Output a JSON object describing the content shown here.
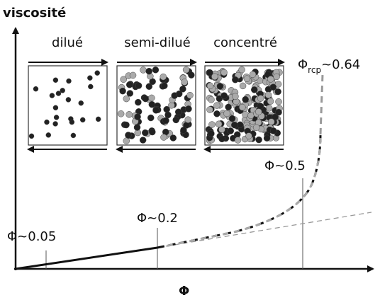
{
  "axes": {
    "y_label": "viscosité",
    "x_label": "Φ"
  },
  "regimes": [
    {
      "label": "dilué"
    },
    {
      "label": "semi-dilué"
    },
    {
      "label": "concentré"
    }
  ],
  "markers": [
    {
      "label": "Φ~0.05"
    },
    {
      "label": "Φ~0.2"
    },
    {
      "label": "Φ~0.5"
    }
  ],
  "rcp_label": {
    "symbol": "Φ",
    "subscript": "rcp",
    "rest": "~0.64"
  }
}
